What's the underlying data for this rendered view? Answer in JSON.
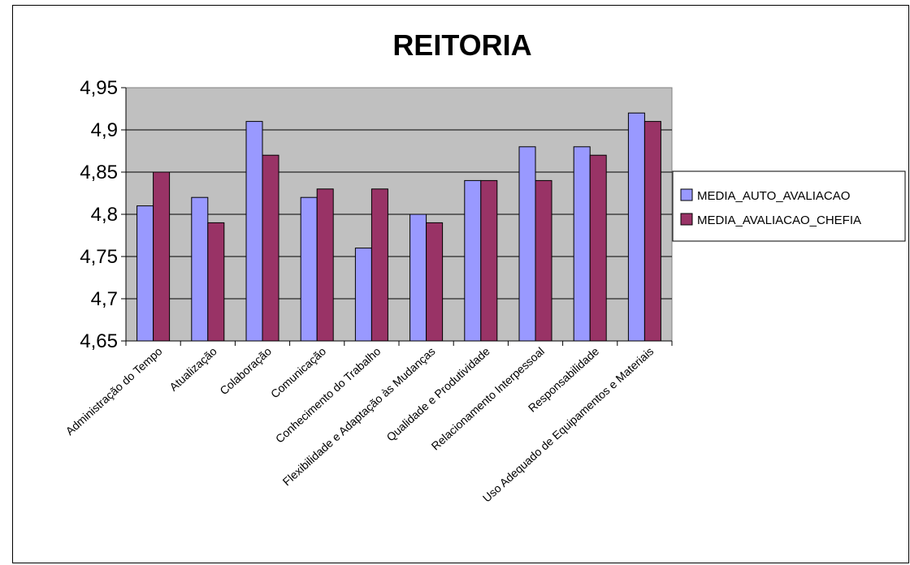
{
  "chart_data": {
    "type": "bar",
    "title": "REITORIA",
    "xlabel": "",
    "ylabel": "",
    "ylim": [
      4.65,
      4.95
    ],
    "yticks": [
      "4,65",
      "4,7",
      "4,75",
      "4,8",
      "4,85",
      "4,9",
      "4,95"
    ],
    "ytick_values": [
      4.65,
      4.7,
      4.75,
      4.8,
      4.85,
      4.9,
      4.95
    ],
    "grid": true,
    "legend_position": "right",
    "categories": [
      "Administração do Tempo",
      "Atualização",
      "Colaboração",
      "Comunicação",
      "Conhecimento do Trabalho",
      "Flexibilidade e Adaptação às Mudanças",
      "Qualidade e Produtividade",
      "Relacionamento Interpessoal",
      "Responsabilidade",
      "Uso Adequado de Equipamentos e Materiais"
    ],
    "series": [
      {
        "name": "MEDIA_AUTO_AVALIACAO",
        "color": "#9999FF",
        "values": [
          4.81,
          4.82,
          4.91,
          4.82,
          4.76,
          4.8,
          4.84,
          4.88,
          4.88,
          4.92
        ]
      },
      {
        "name": "MEDIA_AVALIACAO_CHEFIA",
        "color": "#993366",
        "values": [
          4.85,
          4.79,
          4.87,
          4.83,
          4.83,
          4.79,
          4.84,
          4.84,
          4.87,
          4.91
        ]
      }
    ],
    "plot_background": "#C0C0C0"
  }
}
